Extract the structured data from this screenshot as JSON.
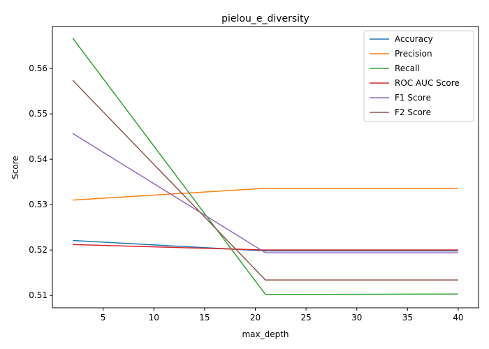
{
  "chart_data": {
    "type": "line",
    "title": "pielou_e_diversity",
    "xlabel": "max_depth",
    "ylabel": "Score",
    "x": [
      2,
      21,
      40
    ],
    "xlim": [
      -0.0,
      42.0
    ],
    "ylim": [
      0.50726,
      0.56925
    ],
    "xticks": [
      5,
      10,
      15,
      20,
      25,
      30,
      35,
      40
    ],
    "yticks": [
      0.51,
      0.52,
      0.53,
      0.54,
      0.55,
      0.56
    ],
    "xtick_labels": [
      "5",
      "10",
      "15",
      "20",
      "25",
      "30",
      "35",
      "40"
    ],
    "ytick_labels": [
      "0.51",
      "0.52",
      "0.53",
      "0.54",
      "0.55",
      "0.56"
    ],
    "grid": false,
    "legend_position": "top-right",
    "series": [
      {
        "name": "Accuracy",
        "color": "#1f77b4",
        "values": [
          0.5221,
          0.5198,
          0.5198
        ]
      },
      {
        "name": "Precision",
        "color": "#ff7f0e",
        "values": [
          0.531,
          0.5336,
          0.5336
        ]
      },
      {
        "name": "Recall",
        "color": "#2ca02c",
        "values": [
          0.5667,
          0.5102,
          0.5103
        ]
      },
      {
        "name": "ROC AUC Score",
        "color": "#d62728",
        "values": [
          0.5212,
          0.52,
          0.52
        ]
      },
      {
        "name": "F1 Score",
        "color": "#9467bd",
        "values": [
          0.5457,
          0.5194,
          0.5194
        ]
      },
      {
        "name": "F2 Score",
        "color": "#8c564b",
        "values": [
          0.5574,
          0.5134,
          0.5134
        ]
      }
    ]
  }
}
